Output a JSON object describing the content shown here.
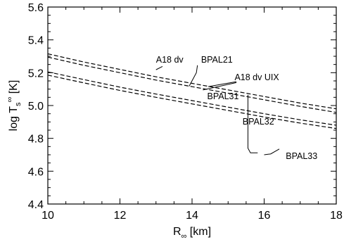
{
  "chart_data": {
    "type": "line",
    "title": "",
    "xlabel": "R",
    "xlabel_sub": "∞",
    "xlabel_unit": " [km]",
    "ylabel": "log T",
    "ylabel_sub": "s",
    "ylabel_sup": "∞",
    "ylabel_unit": " [K]",
    "xlim": [
      10,
      18
    ],
    "ylim": [
      4.4,
      5.6
    ],
    "grid": false,
    "x_ticks": [
      10,
      12,
      14,
      16,
      18
    ],
    "x_tick_labels": [
      "10",
      "12",
      "14",
      "16",
      "18"
    ],
    "y_ticks": [
      4.4,
      4.6,
      4.8,
      5.0,
      5.2,
      5.4,
      5.6
    ],
    "y_tick_labels": [
      "4.4",
      "4.6",
      "4.8",
      "5.0",
      "5.2",
      "5.4",
      "5.6"
    ],
    "series": [
      {
        "x": [
          10,
          11,
          12,
          13,
          14,
          15,
          16,
          17,
          18
        ],
        "y": [
          5.315,
          5.265,
          5.22,
          5.175,
          5.135,
          5.095,
          5.055,
          5.015,
          4.98
        ]
      },
      {
        "x": [
          10,
          11,
          12,
          13,
          14,
          15,
          16,
          17,
          18
        ],
        "y": [
          5.295,
          5.245,
          5.2,
          5.155,
          5.115,
          5.075,
          5.035,
          4.995,
          4.958
        ]
      },
      {
        "x": [
          10,
          11,
          12,
          13,
          14,
          15,
          16,
          17,
          18
        ],
        "y": [
          5.205,
          5.158,
          5.112,
          5.07,
          5.03,
          4.99,
          4.95,
          4.913,
          4.88
        ]
      },
      {
        "x": [
          10,
          11,
          12,
          13,
          14,
          15,
          16,
          17,
          18
        ],
        "y": [
          5.185,
          5.138,
          5.092,
          5.05,
          5.01,
          4.97,
          4.93,
          4.893,
          4.86
        ]
      }
    ],
    "annotations": [
      {
        "text": "A18 dv",
        "x": 13.0,
        "y": 5.262
      },
      {
        "text": "BPAL21",
        "x": 14.25,
        "y": 5.262
      },
      {
        "text": "A18 dv UIX",
        "x": 15.18,
        "y": 5.155
      },
      {
        "text": "BPAL31",
        "x": 14.42,
        "y": 5.038
      },
      {
        "text": "BPAL32",
        "x": 15.4,
        "y": 4.885
      },
      {
        "text": "BPAL33",
        "x": 16.6,
        "y": 4.675
      }
    ],
    "leader_lines": [
      {
        "x": [
          13.0,
          13.18
        ],
        "y": [
          5.218,
          5.238
        ]
      },
      {
        "x": [
          14.15,
          14.12,
          13.92
        ],
        "y": [
          5.245,
          5.2,
          5.118
        ]
      },
      {
        "x": [
          15.23,
          14.45
        ],
        "y": [
          5.145,
          5.115
        ]
      },
      {
        "x": [
          15.23,
          14.3
        ],
        "y": [
          5.14,
          5.095
        ]
      },
      {
        "x": [
          15.55,
          15.55,
          15.62,
          15.82
        ],
        "y": [
          5.065,
          4.74,
          4.712,
          4.712
        ]
      },
      {
        "x": [
          16.0,
          16.18,
          16.42
        ],
        "y": [
          4.7,
          4.705,
          4.735
        ]
      }
    ]
  }
}
